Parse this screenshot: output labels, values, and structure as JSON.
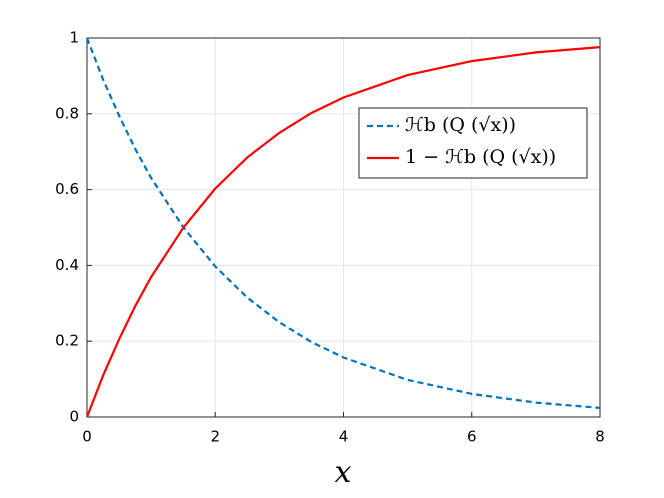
{
  "chart_data": {
    "type": "line",
    "xlabel": "x",
    "x": [
      0,
      0.25,
      0.5,
      0.75,
      1,
      1.5,
      2,
      2.5,
      3,
      3.5,
      4,
      5,
      6,
      7,
      8
    ],
    "series": [
      {
        "name": "ℋb (Q (√x))",
        "color": "#0072bd",
        "linestyle": "dashed",
        "values": [
          1,
          0.891,
          0.795,
          0.708,
          0.631,
          0.501,
          0.397,
          0.315,
          0.25,
          0.198,
          0.157,
          0.098,
          0.061,
          0.038,
          0.024
        ]
      },
      {
        "name": "1 − ℋb (Q (√x))",
        "color": "#ff0000",
        "linestyle": "solid",
        "values": [
          0,
          0.109,
          0.205,
          0.292,
          0.369,
          0.499,
          0.603,
          0.685,
          0.75,
          0.802,
          0.843,
          0.902,
          0.939,
          0.962,
          0.976
        ]
      }
    ],
    "xlim": [
      0,
      8
    ],
    "xticks": [
      0,
      2,
      4,
      6,
      8
    ],
    "ylim": [
      0,
      1
    ],
    "yticks": [
      0,
      0.2,
      0.4,
      0.6,
      0.8,
      1
    ],
    "grid": true,
    "legend": "upper right"
  }
}
